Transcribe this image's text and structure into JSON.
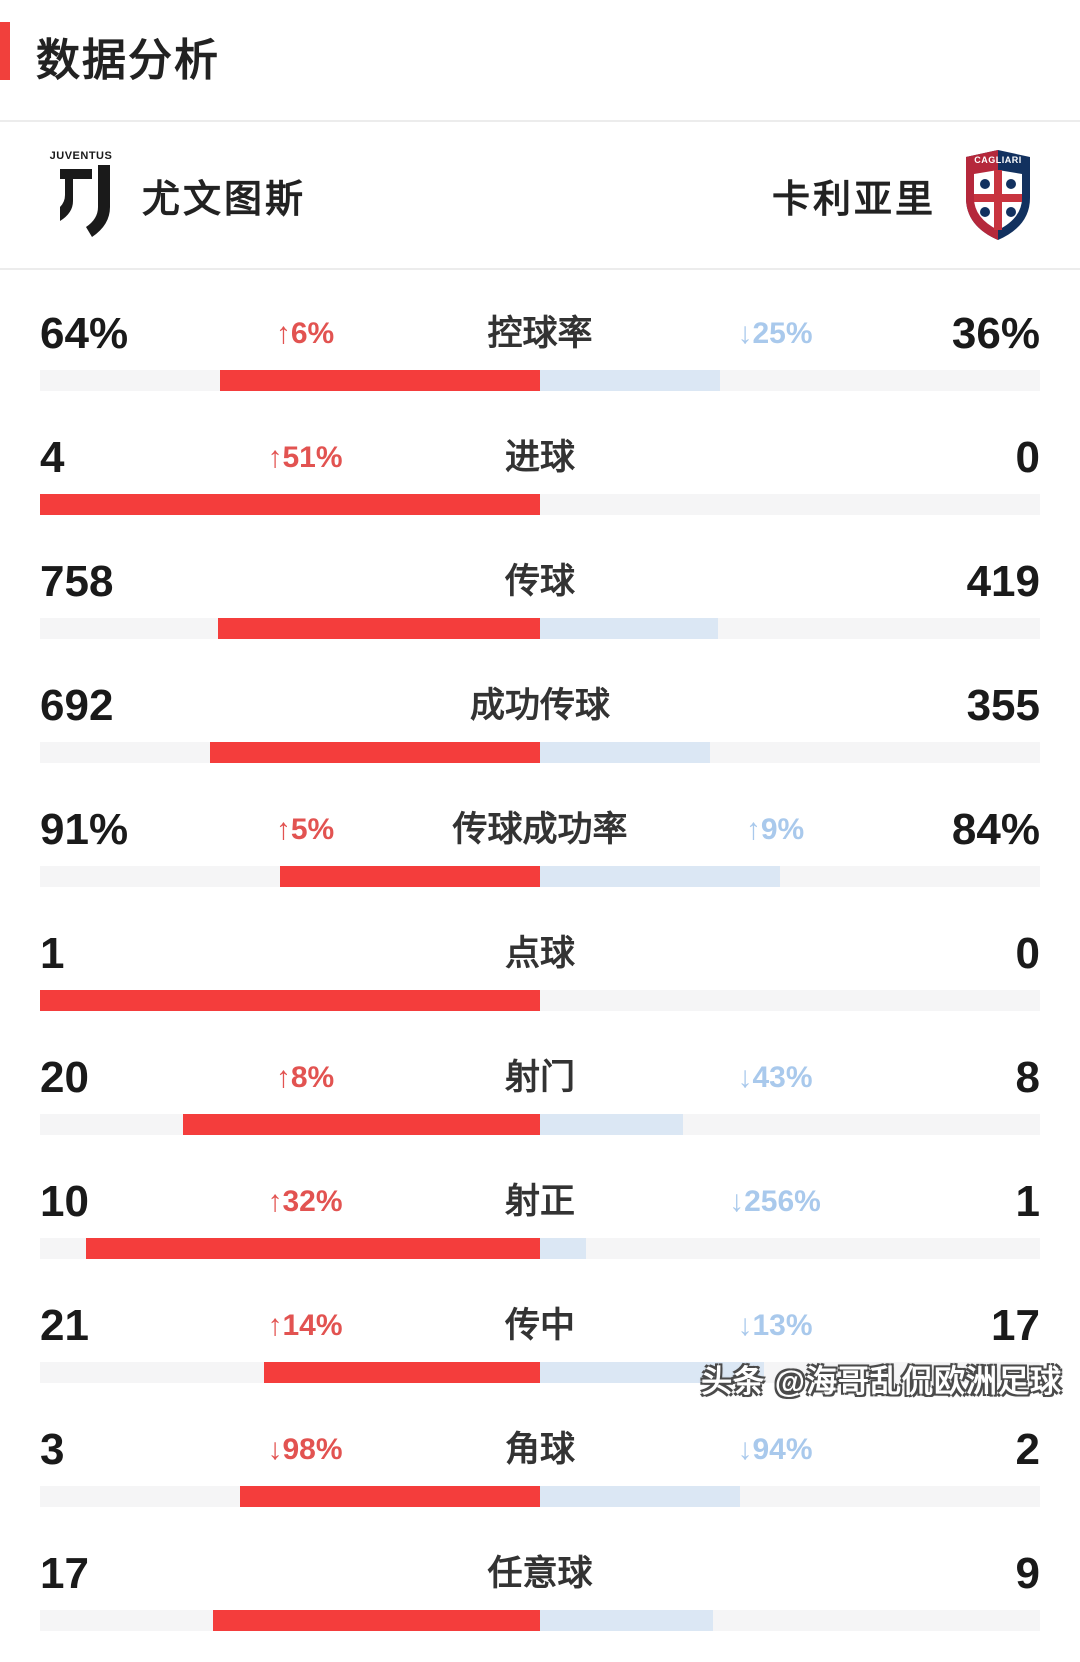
{
  "page": {
    "title": "数据分析"
  },
  "header": {
    "home_team": "尤文图斯",
    "away_team": "卡利亚里",
    "home_crest_text": "JUVENTUS",
    "away_crest_text": "CAGLIARI"
  },
  "colors": {
    "accent_red": "#f1403c",
    "home_bar": "#f43d3c",
    "away_bar": "#dbe7f4",
    "bar_track": "#f5f5f6",
    "home_change_text": "#e25351",
    "away_change_text": "#a9c9ec",
    "cagliari_red": "#b5283b",
    "cagliari_navy": "#12315f"
  },
  "stats": [
    {
      "label": "控球率",
      "home": "64%",
      "away": "36%",
      "home_change": "↑6%",
      "away_change": "↓25%",
      "home_bar": 64.0,
      "away_bar": 36.0
    },
    {
      "label": "进球",
      "home": "4",
      "away": "0",
      "home_change": "↑51%",
      "away_change": "",
      "home_bar": 100.0,
      "away_bar": 0.0
    },
    {
      "label": "传球",
      "home": "758",
      "away": "419",
      "home_change": "",
      "away_change": "",
      "home_bar": 64.4,
      "away_bar": 35.6
    },
    {
      "label": "成功传球",
      "home": "692",
      "away": "355",
      "home_change": "",
      "away_change": "",
      "home_bar": 66.1,
      "away_bar": 33.9
    },
    {
      "label": "传球成功率",
      "home": "91%",
      "away": "84%",
      "home_change": "↑5%",
      "away_change": "↑9%",
      "home_bar": 52.0,
      "away_bar": 48.0
    },
    {
      "label": "点球",
      "home": "1",
      "away": "0",
      "home_change": "",
      "away_change": "",
      "home_bar": 100.0,
      "away_bar": 0.0
    },
    {
      "label": "射门",
      "home": "20",
      "away": "8",
      "home_change": "↑8%",
      "away_change": "↓43%",
      "home_bar": 71.4,
      "away_bar": 28.6
    },
    {
      "label": "射正",
      "home": "10",
      "away": "1",
      "home_change": "↑32%",
      "away_change": "↓256%",
      "home_bar": 90.9,
      "away_bar": 9.1
    },
    {
      "label": "传中",
      "home": "21",
      "away": "17",
      "home_change": "↑14%",
      "away_change": "↓13%",
      "home_bar": 55.3,
      "away_bar": 44.7
    },
    {
      "label": "角球",
      "home": "3",
      "away": "2",
      "home_change": "↓98%",
      "away_change": "↓94%",
      "home_bar": 60.0,
      "away_bar": 40.0
    },
    {
      "label": "任意球",
      "home": "17",
      "away": "9",
      "home_change": "",
      "away_change": "",
      "home_bar": 65.4,
      "away_bar": 34.6
    }
  ],
  "watermark": "头条 @海哥乱侃欧洲足球",
  "chart_data": {
    "type": "bar",
    "title": "数据分析",
    "categories": [
      "控球率",
      "进球",
      "传球",
      "成功传球",
      "传球成功率",
      "点球",
      "射门",
      "射正",
      "传中",
      "角球",
      "任意球"
    ],
    "series": [
      {
        "name": "尤文图斯",
        "values": [
          64,
          4,
          758,
          692,
          91,
          1,
          20,
          10,
          21,
          3,
          17
        ]
      },
      {
        "name": "卡利亚里",
        "values": [
          36,
          0,
          419,
          355,
          84,
          0,
          8,
          1,
          17,
          2,
          9
        ]
      }
    ],
    "value_units": [
      "%",
      "",
      "",
      "",
      "%",
      "",
      "",
      "",
      "",
      "",
      ""
    ],
    "change_labels": [
      {
        "home": "↑6%",
        "away": "↓25%"
      },
      {
        "home": "↑51%",
        "away": ""
      },
      {
        "home": "",
        "away": ""
      },
      {
        "home": "",
        "away": ""
      },
      {
        "home": "↑5%",
        "away": "↑9%"
      },
      {
        "home": "",
        "away": ""
      },
      {
        "home": "↑8%",
        "away": "↓43%"
      },
      {
        "home": "↑32%",
        "away": "↓256%"
      },
      {
        "home": "↑14%",
        "away": "↓13%"
      },
      {
        "home": "↓98%",
        "away": "↓94%"
      },
      {
        "home": "",
        "away": ""
      }
    ],
    "layout": "paired horizontal bars, home extends left from center (red), away extends right from center (light blue), bar length = value share of row total"
  }
}
